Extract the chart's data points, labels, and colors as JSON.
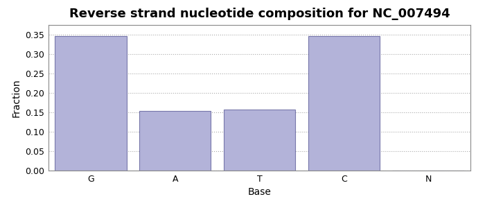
{
  "title": "Reverse strand nucleotide composition for NC_007494",
  "categories": [
    "G",
    "A",
    "T",
    "C",
    "N"
  ],
  "values": [
    0.346,
    0.153,
    0.157,
    0.346,
    0.0
  ],
  "bar_color": "#b3b3d9",
  "bar_edge_color": "#7777aa",
  "xlabel": "Base",
  "ylabel": "Fraction",
  "ylim": [
    0.0,
    0.375
  ],
  "yticks": [
    0.0,
    0.05,
    0.1,
    0.15,
    0.2,
    0.25,
    0.3,
    0.35
  ],
  "grid_color": "#aaaaaa",
  "background_color": "#ffffff",
  "title_fontsize": 13,
  "axis_label_fontsize": 10,
  "tick_fontsize": 9,
  "bar_width": 0.85,
  "spine_color": "#888888"
}
